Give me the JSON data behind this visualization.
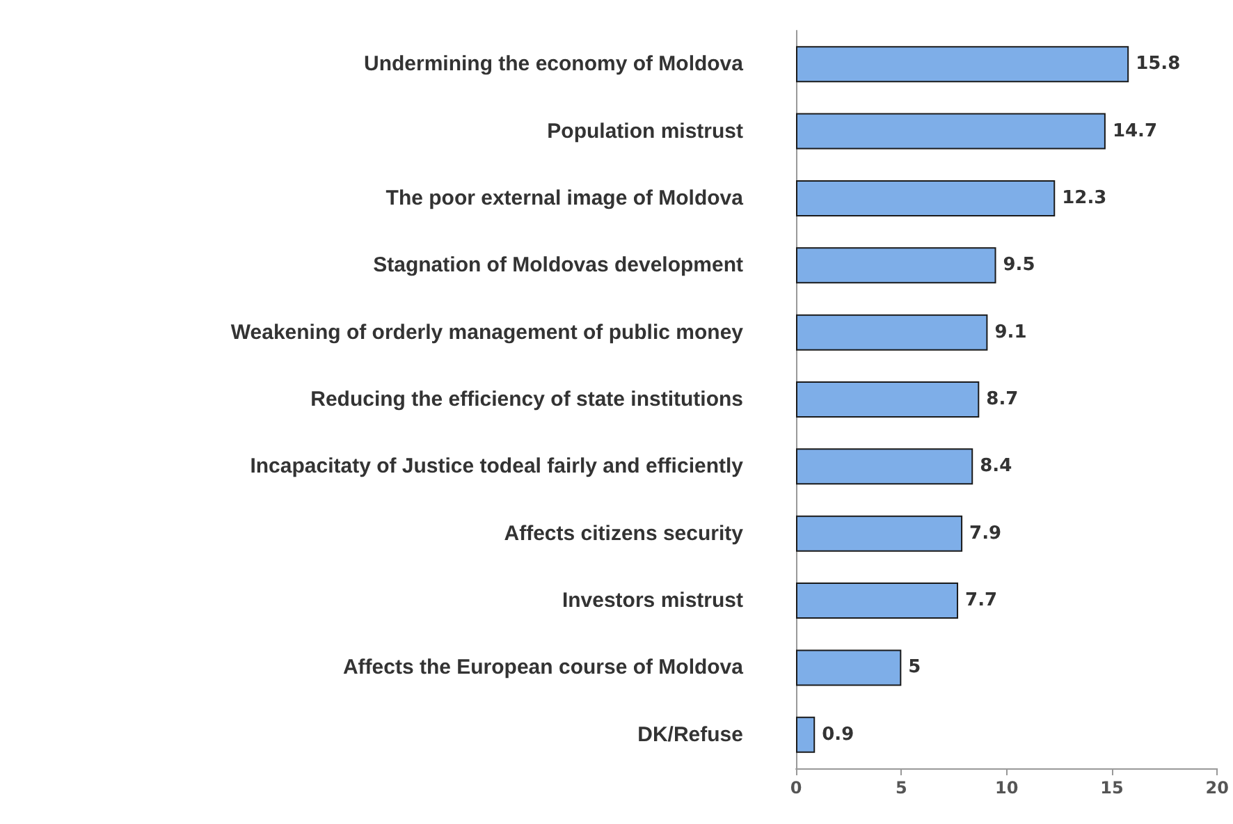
{
  "chart_data": {
    "type": "bar",
    "orientation": "horizontal",
    "categories": [
      "Undermining the economy of Moldova",
      "Population mistrust",
      "The poor external image of Moldova",
      "Stagnation of Moldovas development",
      "Weakening of orderly management of public money",
      "Reducing the efficiency of state institutions",
      "Incapacitaty of Justice todeal fairly and efficiently",
      "Affects citizens security",
      "Investors mistrust",
      "Affects the European course of Moldova",
      "DK/Refuse"
    ],
    "values": [
      15.8,
      14.7,
      12.3,
      9.5,
      9.1,
      8.7,
      8.4,
      7.9,
      7.7,
      5,
      0.9
    ],
    "color": "#7eaee8",
    "xlim": [
      0,
      20
    ],
    "xticks": [
      0,
      5,
      10,
      15,
      20
    ],
    "data_labels": true,
    "grid": false
  }
}
